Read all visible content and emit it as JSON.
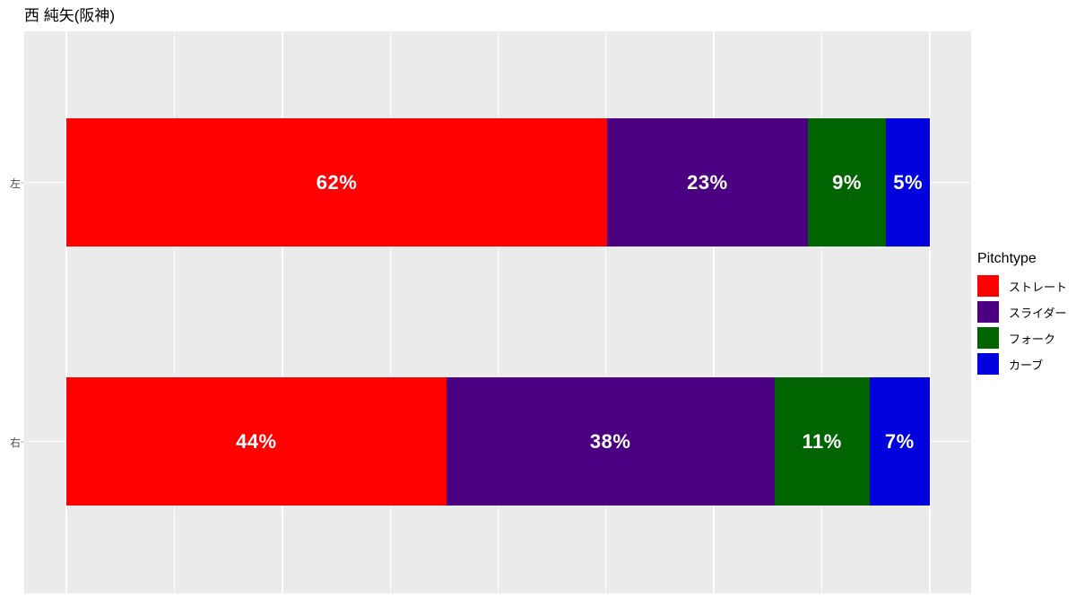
{
  "title": "西 純矢(阪神)",
  "legend": {
    "title": "Pitchtype"
  },
  "colors": {
    "panel_bg": "#EBEBEB",
    "grid": "#FFFFFF",
    "axis_text": "#4D4D4D",
    "bar_label": "#FFFFFF",
    "straight": "#FF0000",
    "slider": "#4B0082",
    "fork": "#006400",
    "curve": "#0000DD"
  },
  "chart_data": {
    "type": "bar",
    "orientation": "horizontal",
    "stacked": true,
    "unit": "percent",
    "title": "西 純矢(阪神)",
    "legend_title": "Pitchtype",
    "legend_position": "right",
    "categories": [
      "左",
      "右"
    ],
    "series": [
      {
        "name": "ストレート",
        "color": "#FF0000",
        "values": [
          62,
          44
        ]
      },
      {
        "name": "スライダー",
        "color": "#4B0082",
        "values": [
          23,
          38
        ]
      },
      {
        "name": "フォーク",
        "color": "#006400",
        "values": [
          9,
          11
        ]
      },
      {
        "name": "カーブ",
        "color": "#0000DD",
        "values": [
          5,
          7
        ]
      }
    ],
    "bar_labels": [
      [
        "62%",
        "23%",
        "9%",
        "5%"
      ],
      [
        "44%",
        "38%",
        "11%",
        "7%"
      ]
    ],
    "xlim": [
      0,
      1
    ],
    "x_axis_labels_shown": false,
    "grid": {
      "vertical_major": [
        0,
        0.25,
        0.5,
        0.75,
        1
      ],
      "vertical_minor": [
        0.125,
        0.375,
        0.625,
        0.875
      ],
      "horizontal_at_category_centers": true
    },
    "panel_background": "#EBEBEB",
    "gridline_color": "#FFFFFF"
  }
}
